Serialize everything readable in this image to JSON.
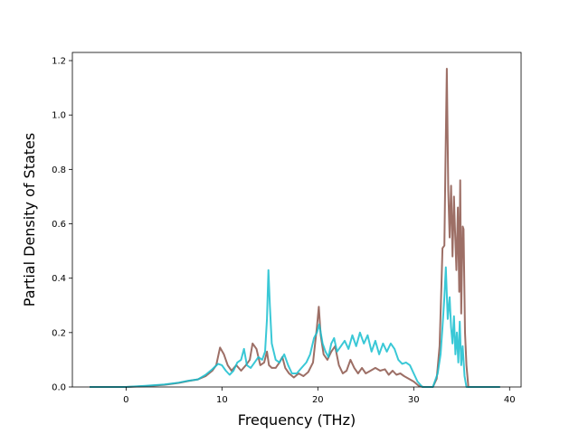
{
  "chart_data": {
    "type": "line",
    "xlabel": "Frequency (THz)",
    "ylabel": "Partial Density of States",
    "xlim": [
      -5.6,
      41.2
    ],
    "ylim": [
      0.0,
      1.23
    ],
    "xticks": [
      0,
      10,
      20,
      30,
      40
    ],
    "xtick_labels": [
      "0",
      "10",
      "20",
      "30",
      "40"
    ],
    "yticks": [
      0.0,
      0.2,
      0.4,
      0.6,
      0.8,
      1.0,
      1.2
    ],
    "ytick_labels": [
      "0.0",
      "0.2",
      "0.4",
      "0.6",
      "0.8",
      "1.0",
      "1.2"
    ],
    "grid": false,
    "series": [
      {
        "color": "#8c564b",
        "points": [
          [
            -3.8,
            0.0
          ],
          [
            0.0,
            0.0
          ],
          [
            2.0,
            0.003
          ],
          [
            4.0,
            0.008
          ],
          [
            5.5,
            0.015
          ],
          [
            6.5,
            0.022
          ],
          [
            7.5,
            0.028
          ],
          [
            8.3,
            0.04
          ],
          [
            9.0,
            0.06
          ],
          [
            9.4,
            0.08
          ],
          [
            9.8,
            0.145
          ],
          [
            10.2,
            0.12
          ],
          [
            10.6,
            0.08
          ],
          [
            11.0,
            0.06
          ],
          [
            11.5,
            0.08
          ],
          [
            12.0,
            0.06
          ],
          [
            12.5,
            0.08
          ],
          [
            12.9,
            0.1
          ],
          [
            13.2,
            0.16
          ],
          [
            13.6,
            0.14
          ],
          [
            14.0,
            0.08
          ],
          [
            14.4,
            0.09
          ],
          [
            14.7,
            0.13
          ],
          [
            14.9,
            0.08
          ],
          [
            15.2,
            0.07
          ],
          [
            15.6,
            0.07
          ],
          [
            16.0,
            0.09
          ],
          [
            16.3,
            0.11
          ],
          [
            16.6,
            0.07
          ],
          [
            17.0,
            0.05
          ],
          [
            17.5,
            0.035
          ],
          [
            18.0,
            0.05
          ],
          [
            18.5,
            0.04
          ],
          [
            19.0,
            0.055
          ],
          [
            19.5,
            0.09
          ],
          [
            19.9,
            0.22
          ],
          [
            20.1,
            0.295
          ],
          [
            20.3,
            0.19
          ],
          [
            20.6,
            0.12
          ],
          [
            21.0,
            0.1
          ],
          [
            21.4,
            0.13
          ],
          [
            21.8,
            0.15
          ],
          [
            22.2,
            0.08
          ],
          [
            22.6,
            0.05
          ],
          [
            23.0,
            0.06
          ],
          [
            23.4,
            0.1
          ],
          [
            23.8,
            0.07
          ],
          [
            24.2,
            0.05
          ],
          [
            24.6,
            0.07
          ],
          [
            25.0,
            0.05
          ],
          [
            25.5,
            0.06
          ],
          [
            26.0,
            0.07
          ],
          [
            26.5,
            0.06
          ],
          [
            27.0,
            0.065
          ],
          [
            27.4,
            0.045
          ],
          [
            27.8,
            0.06
          ],
          [
            28.2,
            0.045
          ],
          [
            28.6,
            0.05
          ],
          [
            29.0,
            0.04
          ],
          [
            29.5,
            0.03
          ],
          [
            30.0,
            0.02
          ],
          [
            30.5,
            0.005
          ],
          [
            31.0,
            0.0
          ],
          [
            32.0,
            0.0
          ],
          [
            32.4,
            0.03
          ],
          [
            32.7,
            0.15
          ],
          [
            32.9,
            0.38
          ],
          [
            33.0,
            0.51
          ],
          [
            33.2,
            0.52
          ],
          [
            33.3,
            0.8
          ],
          [
            33.45,
            1.17
          ],
          [
            33.6,
            0.72
          ],
          [
            33.75,
            0.55
          ],
          [
            33.9,
            0.74
          ],
          [
            34.05,
            0.48
          ],
          [
            34.2,
            0.7
          ],
          [
            34.3,
            0.58
          ],
          [
            34.45,
            0.43
          ],
          [
            34.6,
            0.66
          ],
          [
            34.75,
            0.35
          ],
          [
            34.85,
            0.76
          ],
          [
            34.95,
            0.27
          ],
          [
            35.1,
            0.59
          ],
          [
            35.2,
            0.58
          ],
          [
            35.35,
            0.2
          ],
          [
            35.5,
            0.08
          ],
          [
            35.7,
            0.0
          ],
          [
            39.0,
            0.0
          ]
        ]
      },
      {
        "color": "#17becf",
        "points": [
          [
            -3.8,
            0.0
          ],
          [
            0.0,
            0.0
          ],
          [
            2.0,
            0.004
          ],
          [
            4.0,
            0.009
          ],
          [
            5.5,
            0.016
          ],
          [
            6.5,
            0.023
          ],
          [
            7.5,
            0.028
          ],
          [
            8.3,
            0.045
          ],
          [
            9.0,
            0.065
          ],
          [
            9.6,
            0.085
          ],
          [
            10.0,
            0.08
          ],
          [
            10.4,
            0.06
          ],
          [
            10.8,
            0.045
          ],
          [
            11.2,
            0.06
          ],
          [
            11.6,
            0.09
          ],
          [
            12.0,
            0.1
          ],
          [
            12.3,
            0.14
          ],
          [
            12.6,
            0.08
          ],
          [
            13.0,
            0.07
          ],
          [
            13.4,
            0.09
          ],
          [
            13.8,
            0.11
          ],
          [
            14.2,
            0.1
          ],
          [
            14.5,
            0.13
          ],
          [
            14.7,
            0.25
          ],
          [
            14.85,
            0.43
          ],
          [
            15.0,
            0.3
          ],
          [
            15.2,
            0.16
          ],
          [
            15.6,
            0.1
          ],
          [
            16.0,
            0.09
          ],
          [
            16.5,
            0.12
          ],
          [
            16.9,
            0.08
          ],
          [
            17.3,
            0.05
          ],
          [
            17.8,
            0.05
          ],
          [
            18.3,
            0.07
          ],
          [
            18.8,
            0.09
          ],
          [
            19.2,
            0.12
          ],
          [
            19.6,
            0.18
          ],
          [
            19.9,
            0.2
          ],
          [
            20.15,
            0.23
          ],
          [
            20.5,
            0.16
          ],
          [
            20.8,
            0.13
          ],
          [
            21.1,
            0.11
          ],
          [
            21.4,
            0.16
          ],
          [
            21.7,
            0.18
          ],
          [
            22.0,
            0.13
          ],
          [
            22.4,
            0.15
          ],
          [
            22.8,
            0.17
          ],
          [
            23.2,
            0.14
          ],
          [
            23.6,
            0.19
          ],
          [
            24.0,
            0.15
          ],
          [
            24.4,
            0.2
          ],
          [
            24.8,
            0.16
          ],
          [
            25.2,
            0.19
          ],
          [
            25.6,
            0.13
          ],
          [
            26.0,
            0.17
          ],
          [
            26.4,
            0.12
          ],
          [
            26.8,
            0.16
          ],
          [
            27.2,
            0.13
          ],
          [
            27.6,
            0.16
          ],
          [
            28.0,
            0.14
          ],
          [
            28.4,
            0.1
          ],
          [
            28.8,
            0.085
          ],
          [
            29.2,
            0.09
          ],
          [
            29.6,
            0.08
          ],
          [
            30.0,
            0.05
          ],
          [
            30.4,
            0.02
          ],
          [
            30.9,
            0.0
          ],
          [
            32.0,
            0.0
          ],
          [
            32.5,
            0.05
          ],
          [
            32.8,
            0.12
          ],
          [
            33.0,
            0.22
          ],
          [
            33.2,
            0.33
          ],
          [
            33.35,
            0.44
          ],
          [
            33.55,
            0.25
          ],
          [
            33.75,
            0.33
          ],
          [
            33.9,
            0.22
          ],
          [
            34.05,
            0.16
          ],
          [
            34.2,
            0.26
          ],
          [
            34.35,
            0.12
          ],
          [
            34.5,
            0.2
          ],
          [
            34.65,
            0.09
          ],
          [
            34.8,
            0.24
          ],
          [
            34.95,
            0.08
          ],
          [
            35.1,
            0.15
          ],
          [
            35.3,
            0.04
          ],
          [
            35.5,
            0.0
          ],
          [
            39.0,
            0.0
          ]
        ]
      }
    ]
  }
}
